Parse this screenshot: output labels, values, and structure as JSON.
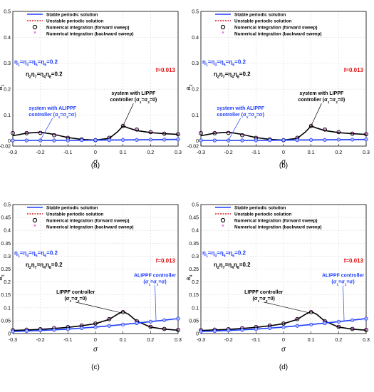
{
  "colors": {
    "stable": "#1f3fff",
    "unstable": "#d41c1c",
    "forward_marker": "#000000",
    "backward_marker": "#e040e0",
    "black_curve": "#000000",
    "blue_curve": "#1f3fff",
    "annotation_red": "#e01010",
    "grid": "#d9d9d9"
  },
  "chart_data": [
    {
      "panel_label": "(a)",
      "type": "line",
      "xlabel": "σ",
      "ylabel": "a",
      "ylabel_sub": "1",
      "xlim": [
        -0.3,
        0.3
      ],
      "ylim": [
        -0.02,
        0.5
      ],
      "xticks": [
        "-0.3",
        "-0.2",
        "-0.1",
        "0",
        "0.1",
        "0.2",
        "0.3"
      ],
      "yticks": [
        "-0.02",
        "0",
        "0.1",
        "0.2",
        "0.3",
        "0.4",
        "0.5"
      ],
      "ytick_values": [
        -0.02,
        0,
        0.1,
        0.2,
        0.3,
        0.4,
        0.5
      ],
      "grid": true,
      "legend_position": "top",
      "legend": [
        "Stable periodic solution",
        "Unstable periodic solution",
        "Numerical integration (forward sweep)",
        "Numerical integration (backward sweep)"
      ],
      "eq1": "η1=η3=η5=η6=0.2",
      "eq2": "η2η7=η4η8=0.2",
      "force": "f=0.013",
      "annotations": [
        {
          "lines": [
            "system with LIPPF",
            "controller (σ1=σ2=0)"
          ],
          "color": "black"
        },
        {
          "lines": [
            "system with ALIPPF",
            "controller (σ1=σ2=σ)"
          ],
          "color": "blue"
        }
      ],
      "series": [
        {
          "curve": "black",
          "x": [
            -0.3,
            -0.25,
            -0.2,
            -0.15,
            -0.1,
            -0.05,
            0.0,
            0.05,
            0.08,
            0.1,
            0.12,
            0.15,
            0.2,
            0.25,
            0.3
          ],
          "y": [
            0.02,
            0.03,
            0.034,
            0.025,
            0.013,
            0.006,
            0.003,
            0.01,
            0.035,
            0.058,
            0.05,
            0.04,
            0.032,
            0.028,
            0.025
          ]
        },
        {
          "curve": "blue",
          "x": [
            -0.3,
            -0.2,
            -0.1,
            0.0,
            0.1,
            0.2,
            0.3
          ],
          "y": [
            0.002,
            0.002,
            0.002,
            0.003,
            0.004,
            0.005,
            0.006
          ]
        },
        {
          "marker": "forward",
          "x": [
            -0.3,
            -0.25,
            -0.2,
            -0.15,
            -0.1,
            -0.05,
            0.0,
            0.05,
            0.1,
            0.15,
            0.2,
            0.25,
            0.3
          ],
          "y": [
            0.03,
            0.03,
            0.031,
            0.022,
            0.012,
            0.006,
            0.003,
            0.012,
            0.058,
            0.044,
            0.034,
            0.028,
            0.026
          ]
        },
        {
          "marker": "backward",
          "x": [
            -0.3,
            -0.25,
            -0.2,
            -0.15,
            -0.1,
            -0.05,
            0.0,
            0.05,
            0.1,
            0.15,
            0.2,
            0.25,
            0.3
          ],
          "y": [
            0.029,
            0.03,
            0.03,
            0.021,
            0.012,
            0.006,
            0.003,
            0.011,
            0.057,
            0.043,
            0.033,
            0.027,
            0.025
          ]
        },
        {
          "marker": "blue_markers",
          "x": [
            -0.3,
            -0.25,
            -0.2,
            -0.15,
            -0.1,
            -0.05,
            0.0,
            0.05,
            0.1,
            0.15,
            0.2,
            0.25,
            0.3
          ],
          "y": [
            0.002,
            0.002,
            0.002,
            0.002,
            0.002,
            0.003,
            0.003,
            0.003,
            0.004,
            0.004,
            0.005,
            0.005,
            0.006
          ]
        }
      ]
    },
    {
      "panel_label": "(b)",
      "type": "line",
      "xlabel": "σ",
      "ylabel": "a",
      "ylabel_sub": "2",
      "xlim": [
        -0.3,
        0.3
      ],
      "ylim": [
        -0.02,
        0.5
      ],
      "xticks": [
        "-0.3",
        "-0.2",
        "-0.1",
        "0",
        "0.1",
        "0.2",
        "0.3"
      ],
      "yticks": [
        "-0.02",
        "0",
        "0.1",
        "0.2",
        "0.3",
        "0.4",
        "0.5"
      ],
      "ytick_values": [
        -0.02,
        0,
        0.1,
        0.2,
        0.3,
        0.4,
        0.5
      ],
      "grid": true,
      "legend_position": "top",
      "legend": [
        "Stable periodic solution",
        "Unstable periodic solution",
        "Numerical integration (forward sweep)",
        "Numerical integration (backward sweep)"
      ],
      "eq1": "η1=η3=η5=η6=0.2",
      "eq2": "η2η7=η4η8=0.2",
      "force": "f=0.013",
      "annotations": [
        {
          "lines": [
            "system with LIPPF",
            "controller (σ1=σ2=0)"
          ],
          "color": "black"
        },
        {
          "lines": [
            "system with ALIPPF",
            "controller (σ1=σ2=σ)"
          ],
          "color": "blue"
        }
      ],
      "series": [
        {
          "curve": "black",
          "x": [
            -0.3,
            -0.25,
            -0.2,
            -0.15,
            -0.1,
            -0.05,
            0.0,
            0.05,
            0.08,
            0.1,
            0.12,
            0.15,
            0.2,
            0.25,
            0.3
          ],
          "y": [
            0.02,
            0.03,
            0.034,
            0.025,
            0.013,
            0.006,
            0.003,
            0.01,
            0.035,
            0.058,
            0.05,
            0.04,
            0.032,
            0.028,
            0.025
          ]
        },
        {
          "curve": "blue",
          "x": [
            -0.3,
            -0.2,
            -0.1,
            0.0,
            0.1,
            0.2,
            0.3
          ],
          "y": [
            0.002,
            0.002,
            0.002,
            0.003,
            0.004,
            0.005,
            0.006
          ]
        },
        {
          "marker": "forward",
          "x": [
            -0.3,
            -0.25,
            -0.2,
            -0.15,
            -0.1,
            -0.05,
            0.0,
            0.05,
            0.1,
            0.15,
            0.2,
            0.25,
            0.3
          ],
          "y": [
            0.03,
            0.03,
            0.031,
            0.022,
            0.012,
            0.006,
            0.003,
            0.012,
            0.058,
            0.044,
            0.034,
            0.028,
            0.026
          ]
        },
        {
          "marker": "backward",
          "x": [
            -0.3,
            -0.25,
            -0.2,
            -0.15,
            -0.1,
            -0.05,
            0.0,
            0.05,
            0.1,
            0.15,
            0.2,
            0.25,
            0.3
          ],
          "y": [
            0.029,
            0.03,
            0.03,
            0.021,
            0.012,
            0.006,
            0.003,
            0.011,
            0.057,
            0.043,
            0.033,
            0.027,
            0.025
          ]
        },
        {
          "marker": "blue_markers",
          "x": [
            -0.3,
            -0.25,
            -0.2,
            -0.15,
            -0.1,
            -0.05,
            0.0,
            0.05,
            0.1,
            0.15,
            0.2,
            0.25,
            0.3
          ],
          "y": [
            0.002,
            0.002,
            0.002,
            0.002,
            0.002,
            0.003,
            0.003,
            0.003,
            0.004,
            0.004,
            0.005,
            0.005,
            0.006
          ]
        }
      ]
    },
    {
      "panel_label": "(c)",
      "type": "line",
      "xlabel": "σ",
      "ylabel": "a",
      "ylabel_sub": "3",
      "xlim": [
        -0.3,
        0.3
      ],
      "ylim": [
        0,
        0.5
      ],
      "xticks": [
        "-0.3",
        "-0.2",
        "-0.1",
        "0",
        "0.1",
        "0.2",
        "0.3"
      ],
      "yticks": [
        "0",
        "0.05",
        "0.1",
        "0.15",
        "0.2",
        "0.25",
        "0.3",
        "0.35",
        "0.4",
        "0.45",
        "0.5"
      ],
      "ytick_values": [
        0,
        0.05,
        0.1,
        0.15,
        0.2,
        0.25,
        0.3,
        0.35,
        0.4,
        0.45,
        0.5
      ],
      "grid": true,
      "legend_position": "top",
      "legend": [
        "Stable periodic solution",
        "Unstable periodic solution",
        "Numerical integration (forward sweep)",
        "Numerical integration (backward sweep)"
      ],
      "eq1": "η1=η3=η5=η6=0.2",
      "eq2": "η2η7=η4η8=0.2",
      "force": "f=0.013",
      "annotations": [
        {
          "lines": [
            "LIPPF controller",
            "(σ1=σ2=0)"
          ],
          "color": "black"
        },
        {
          "lines": [
            "ALIPPF controller",
            "(σ1=σ2=σ)"
          ],
          "color": "blue"
        }
      ],
      "series": [
        {
          "curve": "black",
          "x": [
            -0.3,
            -0.25,
            -0.2,
            -0.15,
            -0.1,
            -0.05,
            0.0,
            0.05,
            0.08,
            0.1,
            0.12,
            0.15,
            0.2,
            0.25,
            0.3
          ],
          "y": [
            0.012,
            0.014,
            0.016,
            0.02,
            0.024,
            0.03,
            0.038,
            0.055,
            0.075,
            0.085,
            0.075,
            0.048,
            0.025,
            0.017,
            0.013
          ]
        },
        {
          "curve": "blue",
          "x": [
            -0.3,
            -0.2,
            -0.1,
            0.0,
            0.1,
            0.2,
            0.3
          ],
          "y": [
            0.008,
            0.012,
            0.017,
            0.025,
            0.035,
            0.046,
            0.058
          ]
        },
        {
          "marker": "forward",
          "x": [
            -0.3,
            -0.25,
            -0.2,
            -0.15,
            -0.1,
            -0.05,
            0.0,
            0.05,
            0.1,
            0.15,
            0.2,
            0.25,
            0.3
          ],
          "y": [
            0.013,
            0.015,
            0.017,
            0.021,
            0.025,
            0.031,
            0.039,
            0.056,
            0.083,
            0.048,
            0.026,
            0.018,
            0.014
          ]
        },
        {
          "marker": "backward",
          "x": [
            -0.3,
            -0.25,
            -0.2,
            -0.15,
            -0.1,
            -0.05,
            0.0,
            0.05,
            0.1,
            0.15,
            0.2,
            0.25,
            0.3
          ],
          "y": [
            0.012,
            0.014,
            0.016,
            0.02,
            0.024,
            0.03,
            0.038,
            0.055,
            0.082,
            0.047,
            0.025,
            0.017,
            0.013
          ]
        },
        {
          "marker": "blue_markers",
          "x": [
            -0.3,
            -0.25,
            -0.2,
            -0.15,
            -0.1,
            -0.05,
            0.0,
            0.05,
            0.1,
            0.15,
            0.2,
            0.25,
            0.3
          ],
          "y": [
            0.008,
            0.01,
            0.012,
            0.014,
            0.017,
            0.021,
            0.025,
            0.03,
            0.035,
            0.04,
            0.046,
            0.052,
            0.058
          ]
        }
      ]
    },
    {
      "panel_label": "(d)",
      "type": "line",
      "xlabel": "σ",
      "ylabel": "a",
      "ylabel_sub": "4",
      "xlim": [
        -0.3,
        0.3
      ],
      "ylim": [
        0,
        0.5
      ],
      "xticks": [
        "-0.3",
        "-0.2",
        "-0.1",
        "0",
        "0.1",
        "0.2",
        "0.3"
      ],
      "yticks": [
        "0",
        "0.05",
        "0.1",
        "0.15",
        "0.2",
        "0.25",
        "0.3",
        "0.35",
        "0.4",
        "0.45",
        "0.5"
      ],
      "ytick_values": [
        0,
        0.05,
        0.1,
        0.15,
        0.2,
        0.25,
        0.3,
        0.35,
        0.4,
        0.45,
        0.5
      ],
      "grid": true,
      "legend_position": "top",
      "legend": [
        "Stable periodic solution",
        "Unstable periodic solution",
        "Numerical integration (forward sweep)",
        "Numerical integration (backward sweep)"
      ],
      "eq1": "η1=η3=η5=η6=0.2",
      "eq2": "η2η7=η4η8=0.2",
      "force": "f=0.013",
      "annotations": [
        {
          "lines": [
            "LIPPF controller",
            "(σ1=σ2=0)"
          ],
          "color": "black"
        },
        {
          "lines": [
            "ALIPPF controller",
            "(σ1=σ2=σ)"
          ],
          "color": "blue"
        }
      ],
      "series": [
        {
          "curve": "black",
          "x": [
            -0.3,
            -0.25,
            -0.2,
            -0.15,
            -0.1,
            -0.05,
            0.0,
            0.05,
            0.08,
            0.1,
            0.12,
            0.15,
            0.2,
            0.25,
            0.3
          ],
          "y": [
            0.012,
            0.014,
            0.016,
            0.02,
            0.024,
            0.03,
            0.038,
            0.055,
            0.075,
            0.085,
            0.075,
            0.048,
            0.025,
            0.017,
            0.013
          ]
        },
        {
          "curve": "blue",
          "x": [
            -0.3,
            -0.2,
            -0.1,
            0.0,
            0.1,
            0.2,
            0.3
          ],
          "y": [
            0.008,
            0.012,
            0.017,
            0.025,
            0.035,
            0.046,
            0.058
          ]
        },
        {
          "marker": "forward",
          "x": [
            -0.3,
            -0.25,
            -0.2,
            -0.15,
            -0.1,
            -0.05,
            0.0,
            0.05,
            0.1,
            0.15,
            0.2,
            0.25,
            0.3
          ],
          "y": [
            0.013,
            0.015,
            0.017,
            0.021,
            0.025,
            0.031,
            0.039,
            0.056,
            0.083,
            0.048,
            0.026,
            0.018,
            0.014
          ]
        },
        {
          "marker": "backward",
          "x": [
            -0.3,
            -0.25,
            -0.2,
            -0.15,
            -0.1,
            -0.05,
            0.0,
            0.05,
            0.1,
            0.15,
            0.2,
            0.25,
            0.3
          ],
          "y": [
            0.012,
            0.014,
            0.016,
            0.02,
            0.024,
            0.03,
            0.038,
            0.055,
            0.082,
            0.047,
            0.025,
            0.017,
            0.013
          ]
        },
        {
          "marker": "blue_markers",
          "x": [
            -0.3,
            -0.25,
            -0.2,
            -0.15,
            -0.1,
            -0.05,
            0.0,
            0.05,
            0.1,
            0.15,
            0.2,
            0.25,
            0.3
          ],
          "y": [
            0.008,
            0.01,
            0.012,
            0.014,
            0.017,
            0.021,
            0.025,
            0.03,
            0.035,
            0.04,
            0.046,
            0.052,
            0.058
          ]
        }
      ]
    }
  ]
}
